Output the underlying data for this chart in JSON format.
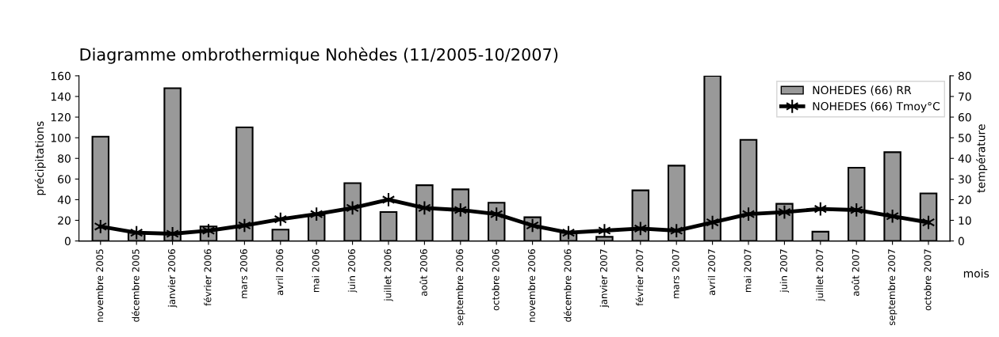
{
  "chart_data": {
    "type": "bar",
    "title": "Diagramme ombrothermique Nohèdes (11/2005-10/2007)",
    "xlabel": "mois",
    "ylabel": "précipitations",
    "y2label": "température",
    "categories": [
      "novembre 2005",
      "décembre 2005",
      "janvier 2006",
      "février 2006",
      "mars 2006",
      "avril 2006",
      "mai 2006",
      "juin 2006",
      "juillet 2006",
      "août 2006",
      "septembre 2006",
      "octobre 2006",
      "novembre 2006",
      "décembre 2006",
      "janvier 2007",
      "février 2007",
      "mars 2007",
      "avril 2007",
      "mai 2007",
      "juin 2007",
      "juillet 2007",
      "août 2007",
      "septembre 2007",
      "octobre 2007"
    ],
    "series": [
      {
        "name": "NOHEDES (66) RR",
        "color": "#999999",
        "values": [
          101,
          8,
          148,
          14,
          110,
          11,
          25,
          56,
          28,
          54,
          50,
          37,
          23,
          8,
          4,
          49,
          73,
          160,
          98,
          36,
          9,
          71,
          86,
          46
        ]
      },
      {
        "name": "NOHEDES (66) Tmoy°C",
        "type": "line",
        "axis": "y2",
        "color": "#000000",
        "marker": "cross",
        "line_style": "solid",
        "values": [
          7,
          4,
          3.5,
          5,
          7.5,
          10.5,
          13,
          16,
          20,
          16,
          15,
          13,
          7.5,
          4,
          5,
          6,
          5,
          9,
          13,
          14,
          15.5,
          15,
          12,
          9
        ]
      }
    ],
    "ylim": [
      0,
      160
    ],
    "yticks": [
      0,
      20,
      40,
      60,
      80,
      100,
      120,
      140,
      160
    ],
    "y2lim": [
      0,
      80
    ],
    "y2ticks": [
      0,
      10,
      20,
      30,
      40,
      50,
      60,
      70,
      80
    ],
    "grid": false,
    "legend": "top right"
  }
}
